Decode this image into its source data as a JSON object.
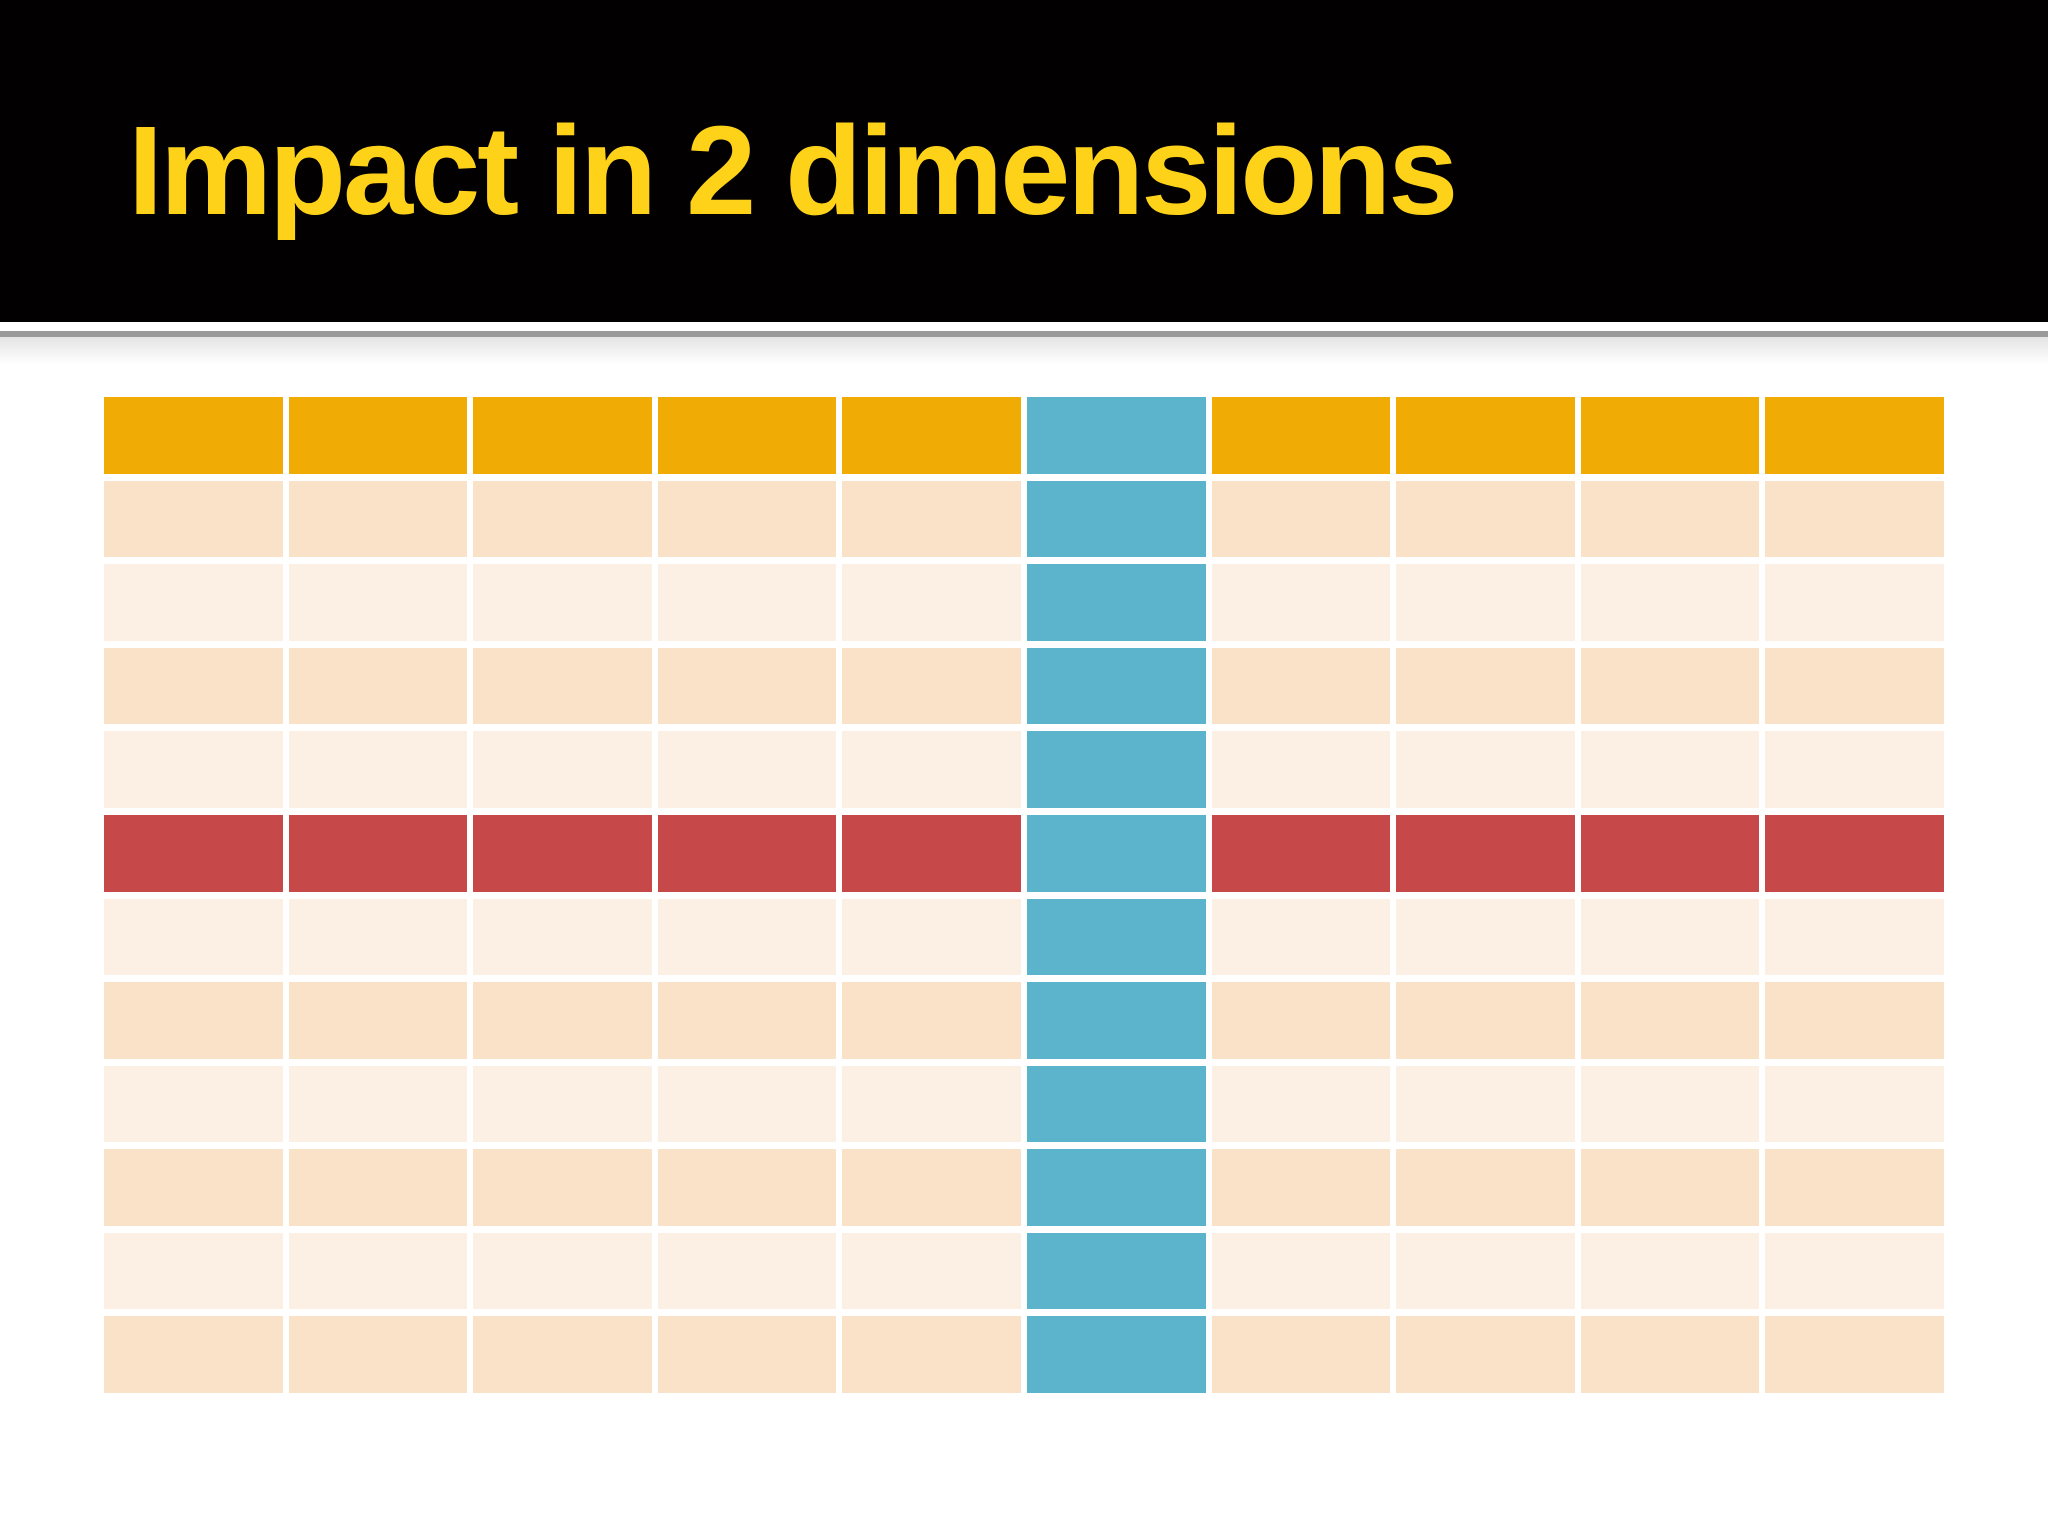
{
  "slide": {
    "title": "Impact in 2 dimensions"
  },
  "table": {
    "columns": 10,
    "rows": 12,
    "header_row": 1,
    "highlight_row": 6,
    "highlight_column": 6,
    "row_pattern": [
      "header",
      "dark",
      "light",
      "dark",
      "light",
      "red",
      "light",
      "dark",
      "light",
      "dark",
      "light",
      "dark"
    ]
  },
  "colors": {
    "title_text": "#FFD21A",
    "title_band": "#020000",
    "divider": "#9A9A9A",
    "header_orange": "#F0AB04",
    "row_dark": "#F9E2C8",
    "row_light": "#FCF0E5",
    "highlight_red": "#C64848",
    "highlight_blue": "#5BB4CC",
    "page_background": "#FFFFFF"
  }
}
